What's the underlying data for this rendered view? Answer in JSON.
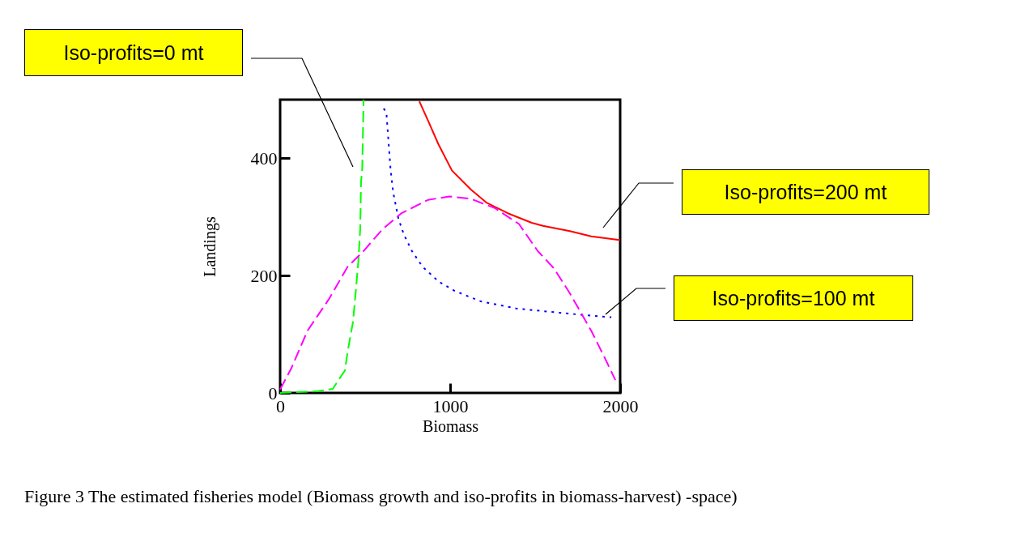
{
  "chart_data": {
    "type": "line",
    "xlabel": "Biomass",
    "ylabel": "Landings",
    "xlim": [
      0,
      2000
    ],
    "ylim": [
      0,
      500
    ],
    "xticks": [
      0,
      1000,
      2000
    ],
    "yticks": [
      0,
      200,
      400
    ],
    "grid": false,
    "series": [
      {
        "color": "#00ff00",
        "line_style": "dashed",
        "x": [
          0,
          224,
          310,
          350,
          381,
          397,
          428,
          444,
          460,
          471,
          476,
          483,
          491
        ],
        "values": [
          0,
          3,
          7,
          25,
          38,
          70,
          120,
          170,
          224,
          279,
          360,
          383,
          500
        ]
      },
      {
        "color": "#0000ff",
        "line_style": "dotted",
        "x": [
          609,
          625,
          649,
          665,
          696,
          728,
          775,
          838,
          932,
          1027,
          1181,
          1389,
          1704,
          1948
        ],
        "values": [
          485,
          478,
          383,
          342,
          297,
          270,
          242,
          215,
          190,
          174,
          156,
          144,
          135,
          129
        ]
      },
      {
        "color": "#ff0000",
        "line_style": "solid",
        "x": [
          819,
          869,
          931,
          1011,
          1121,
          1216,
          1342,
          1480,
          1546,
          1704,
          1830,
          1987,
          2000
        ],
        "values": [
          497,
          465,
          424,
          379,
          347,
          324,
          306,
          290,
          285,
          276,
          267,
          261,
          261
        ]
      },
      {
        "color": "#ff00ff",
        "line_style": "dashed",
        "x": [
          0,
          66,
          161,
          287,
          397,
          491,
          602,
          712,
          869,
          995,
          1121,
          1263,
          1405,
          1515,
          1609,
          1704,
          1767,
          1830,
          1909,
          1972
        ],
        "values": [
          6,
          42,
          106,
          160,
          215,
          242,
          279,
          306,
          329,
          335,
          331,
          315,
          288,
          242,
          213,
          170,
          138,
          106,
          60,
          22
        ]
      }
    ],
    "annotations": [
      "Iso-profits=0 mt",
      "Iso-profits=200 mt",
      "Iso-profits=100 mt",
      "Figure 3 The estimated fisheries model (Biomass growth and iso-profits in biomass-harvest) -space)"
    ]
  }
}
